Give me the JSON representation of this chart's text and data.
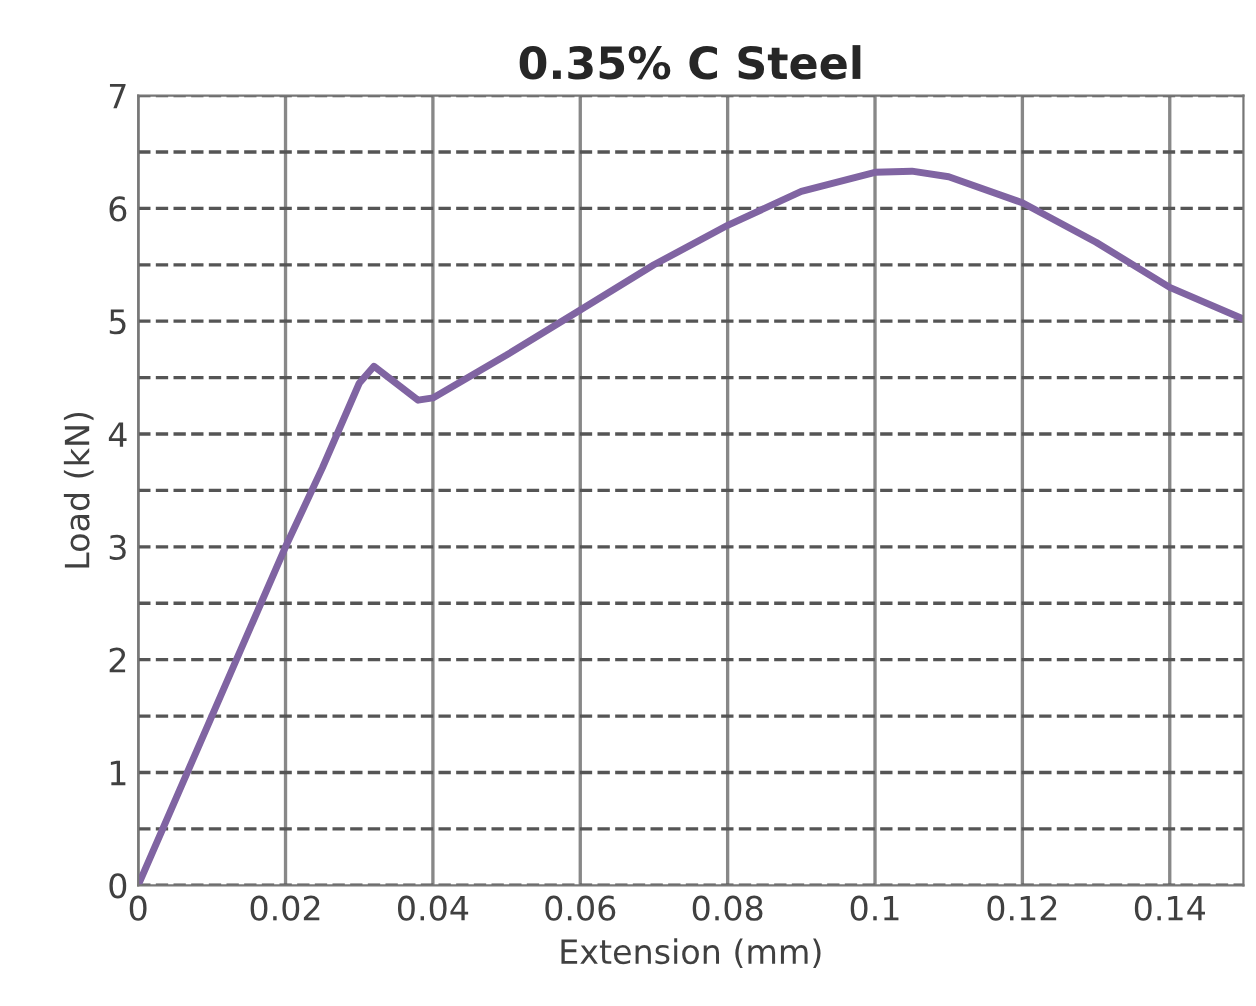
{
  "chart_data": {
    "type": "line",
    "title": "0.35% C Steel",
    "xlabel": "Extension (mm)",
    "ylabel": "Load (kN)",
    "x": [
      0,
      0.01,
      0.02,
      0.025,
      0.03,
      0.032,
      0.035,
      0.038,
      0.04,
      0.05,
      0.06,
      0.07,
      0.08,
      0.09,
      0.1,
      0.105,
      0.11,
      0.12,
      0.13,
      0.14,
      0.15
    ],
    "series": [
      {
        "color": "#8064a2",
        "values": [
          0,
          1.5,
          3.0,
          3.7,
          4.45,
          4.6,
          4.45,
          4.3,
          4.32,
          4.7,
          5.1,
          5.5,
          5.85,
          6.15,
          6.32,
          6.33,
          6.28,
          6.05,
          5.7,
          5.3,
          5.02
        ]
      }
    ],
    "xlim": [
      0,
      0.15
    ],
    "xticks": [
      0,
      0.02,
      0.04,
      0.06,
      0.08,
      0.1,
      0.12,
      0.14
    ],
    "ylim": [
      0,
      7
    ],
    "yticks": [
      0,
      {
        "value": 0.5,
        "label": null
      },
      1,
      {
        "value": 1.5,
        "label": null
      },
      2,
      {
        "value": 2.5,
        "label": null
      },
      3,
      {
        "value": 3.5,
        "label": null
      },
      4,
      {
        "value": 4.5,
        "label": null
      },
      5,
      {
        "value": 5.5,
        "label": null
      },
      6,
      {
        "value": 6.5,
        "label": null
      },
      7
    ],
    "grid": true,
    "marker": "none",
    "line_style": "solid"
  }
}
